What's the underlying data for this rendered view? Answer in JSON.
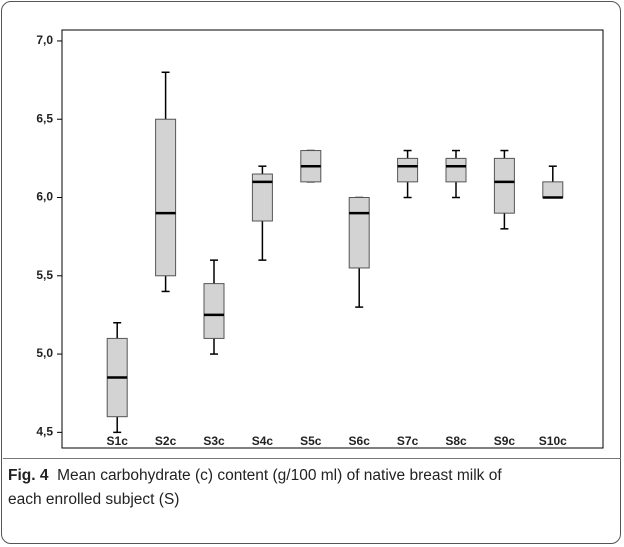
{
  "chart_data": {
    "type": "box",
    "categories": [
      "S1c",
      "S2c",
      "S3c",
      "S4c",
      "S5c",
      "S6c",
      "S7c",
      "S8c",
      "S9c",
      "S10c"
    ],
    "min": [
      4.5,
      5.4,
      5.0,
      5.6,
      6.1,
      5.3,
      6.0,
      6.0,
      5.8,
      6.0
    ],
    "q1": [
      4.6,
      5.5,
      5.1,
      5.85,
      6.1,
      5.55,
      6.1,
      6.1,
      5.9,
      6.0
    ],
    "median": [
      4.85,
      5.9,
      5.25,
      6.1,
      6.2,
      5.9,
      6.2,
      6.2,
      6.1,
      6.0
    ],
    "q3": [
      5.1,
      6.5,
      5.45,
      6.15,
      6.3,
      6.0,
      6.25,
      6.25,
      6.25,
      6.1
    ],
    "max": [
      5.2,
      6.8,
      5.6,
      6.2,
      6.3,
      6.0,
      6.3,
      6.3,
      6.3,
      6.2
    ],
    "color": "#d3d3d3",
    "ylim": [
      4.4,
      7.07
    ],
    "yticks": [
      {
        "value": 4.5,
        "label": "4,5"
      },
      {
        "value": 5,
        "label": "5,0"
      },
      {
        "value": 5.5,
        "label": "5,5"
      },
      {
        "value": 6,
        "label": "6,0"
      },
      {
        "value": 6.5,
        "label": "6,5"
      },
      {
        "value": 7,
        "label": "7,0"
      }
    ]
  },
  "figure_caption": {
    "label": "Fig. 4",
    "text": "Mean carbohydrate (c) content (g/100 ml) of native breast milk of each enrolled subject (S)"
  }
}
